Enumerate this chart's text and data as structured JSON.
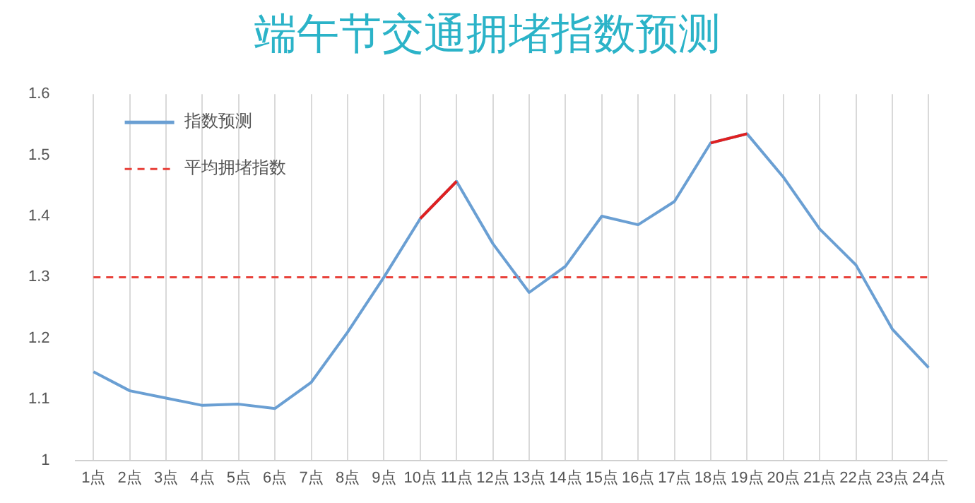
{
  "chart_data": {
    "type": "line",
    "title": "端午节交通拥堵指数预测",
    "categories": [
      "1点",
      "2点",
      "3点",
      "4点",
      "5点",
      "6点",
      "7点",
      "8点",
      "9点",
      "10点",
      "11点",
      "12点",
      "13点",
      "14点",
      "15点",
      "16点",
      "17点",
      "18点",
      "19点",
      "20点",
      "21点",
      "22点",
      "23点",
      "24点"
    ],
    "series": [
      {
        "name": "指数预测",
        "color": "#6a9fd3",
        "values": [
          1.145,
          1.114,
          1.102,
          1.09,
          1.092,
          1.085,
          1.128,
          1.21,
          1.3,
          1.396,
          1.457,
          1.355,
          1.275,
          1.318,
          1.4,
          1.386,
          1.424,
          1.52,
          1.535,
          1.464,
          1.379,
          1.32,
          1.215,
          1.152
        ]
      },
      {
        "color": "#e02020",
        "values": [
          null,
          null,
          null,
          null,
          null,
          null,
          null,
          null,
          null,
          1.396,
          1.457,
          null,
          null,
          null,
          null,
          null,
          null,
          1.52,
          1.535,
          null,
          null,
          null,
          null,
          null
        ]
      }
    ],
    "ref_lines": [
      {
        "axis": "y",
        "value": 1.3,
        "label": "平均拥堵指数",
        "color": "#e8413a",
        "line_style": "dashed"
      }
    ],
    "ylim": [
      1,
      1.6
    ],
    "yticks": [
      1,
      1.1,
      1.2,
      1.3,
      1.4,
      1.5,
      1.6
    ],
    "grid": "x",
    "legend": "top left",
    "marker": "none",
    "line_style": "solid"
  }
}
